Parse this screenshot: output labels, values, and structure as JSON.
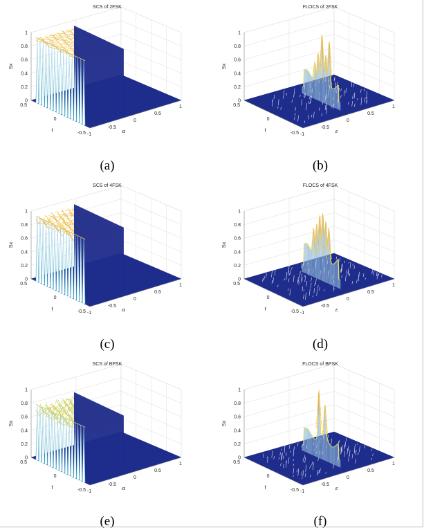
{
  "chart_data": [
    {
      "type": "surface3d",
      "panel": "a",
      "title": "SCS of 2FSK",
      "caption": "(a)",
      "kind": "scs",
      "palette": [
        "#1e2c8c",
        "#1a8fc9",
        "#5ec4a7",
        "#f5e462",
        "#f2c64d",
        "#e8b04a"
      ],
      "zlabel": "Sx",
      "xlabel": "α",
      "ylabel": "f",
      "zticks": [
        "0",
        "0.2",
        "0.4",
        "0.6",
        "0.8",
        "1"
      ],
      "xticks": [
        "-1",
        "-0.5",
        "0",
        "0.5",
        "1"
      ],
      "yticks": [
        "-0.5",
        "0",
        "0.5"
      ],
      "zlim": [
        0,
        1
      ],
      "xlim": [
        -1,
        1
      ],
      "ylim": [
        -0.5,
        0.5
      ],
      "n_spikes": 17,
      "roughness": 0.03
    },
    {
      "type": "surface3d",
      "panel": "b",
      "title": "FLOCS of 2FSK",
      "caption": "(b)",
      "kind": "flocs",
      "palette": [
        "#1e2c8c",
        "#1a8fc9",
        "#5ec4a7",
        "#f5e462",
        "#f2c64d",
        "#e8b04a"
      ],
      "zlabel": "Sx",
      "xlabel": "ε",
      "ylabel": "f",
      "zticks": [
        "0",
        "0.2",
        "0.4",
        "0.6",
        "0.8",
        "1"
      ],
      "xticks": [
        "-1",
        "-0.5",
        "0",
        "0.5",
        "1"
      ],
      "yticks": [
        "-0.5",
        "0",
        "0.5"
      ],
      "zlim": [
        0,
        1
      ],
      "xlim": [
        -1,
        1
      ],
      "ylim": [
        -0.5,
        0.5
      ],
      "peak_positions": [
        0.33,
        0.42,
        0.52,
        0.62,
        0.71
      ],
      "peak_heights": [
        0.55,
        0.7,
        1.0,
        0.72,
        0.95
      ],
      "base_level": 0.38
    },
    {
      "type": "surface3d",
      "panel": "c",
      "title": "SCS of 4FSK",
      "caption": "(c)",
      "kind": "scs",
      "palette": [
        "#1e2c8c",
        "#1a8fc9",
        "#5ec4a7",
        "#f5e462",
        "#f2c64d",
        "#e8b04a"
      ],
      "zlabel": "Sx",
      "xlabel": "α",
      "ylabel": "f",
      "zticks": [
        "0",
        "0.2",
        "0.4",
        "0.6",
        "0.8",
        "1"
      ],
      "xticks": [
        "-1",
        "-0.5",
        "0",
        "0.5",
        "1"
      ],
      "yticks": [
        "-0.5",
        "0",
        "0.5"
      ],
      "zlim": [
        0,
        1
      ],
      "xlim": [
        -1,
        1
      ],
      "ylim": [
        -0.5,
        0.5
      ],
      "n_spikes": 17,
      "roughness": 0.06
    },
    {
      "type": "surface3d",
      "panel": "d",
      "title": "FLOCS of 4FSK",
      "caption": "(d)",
      "kind": "flocs",
      "palette": [
        "#1e2c8c",
        "#1a8fc9",
        "#5ec4a7",
        "#f5e462",
        "#f2c64d",
        "#e8b04a"
      ],
      "zlabel": "Sx",
      "xlabel": "ε",
      "ylabel": "f",
      "zticks": [
        "0",
        "0.2",
        "0.4",
        "0.6",
        "0.8",
        "1"
      ],
      "xticks": [
        "-1",
        "-0.5",
        "0",
        "0.5",
        "1"
      ],
      "yticks": [
        "-0.5",
        "0",
        "0.5"
      ],
      "zlim": [
        0,
        1
      ],
      "xlim": [
        -1,
        1
      ],
      "ylim": [
        -0.5,
        0.5
      ],
      "peak_positions": [
        0.3,
        0.38,
        0.46,
        0.54,
        0.62,
        0.7
      ],
      "peak_heights": [
        0.72,
        0.8,
        0.95,
        1.0,
        0.9,
        0.82
      ],
      "base_level": 0.45
    },
    {
      "type": "surface3d",
      "panel": "e",
      "title": "SCS of BPSK",
      "caption": "(e)",
      "kind": "scs",
      "palette": [
        "#1e2c8c",
        "#1a8fc9",
        "#5ec4a7",
        "#9ccc65",
        "#c9d868",
        "#e8c85a"
      ],
      "zlabel": "Sx",
      "xlabel": "α",
      "ylabel": "f",
      "zticks": [
        "0",
        "0.2",
        "0.4",
        "0.6",
        "0.8",
        "1"
      ],
      "xticks": [
        "-1",
        "-0.5",
        "0",
        "0.5",
        "1"
      ],
      "yticks": [
        "-0.5",
        "0",
        "0.5"
      ],
      "zlim": [
        0,
        1
      ],
      "xlim": [
        -1,
        1
      ],
      "ylim": [
        -0.5,
        0.5
      ],
      "n_spikes": 17,
      "roughness": 0.08,
      "top_level": 0.82
    },
    {
      "type": "surface3d",
      "panel": "f",
      "title": "FLOCS of BPSK",
      "caption": "(f)",
      "kind": "flocs",
      "palette": [
        "#1e2c8c",
        "#1a8fc9",
        "#5ec4a7",
        "#f5e462",
        "#f2c64d",
        "#e8b04a"
      ],
      "zlabel": "Sx",
      "xlabel": "ε",
      "ylabel": "f",
      "zticks": [
        "0",
        "0.2",
        "0.4",
        "0.6",
        "0.8",
        "1"
      ],
      "xticks": [
        "-1",
        "-0.5",
        "0",
        "0.5",
        "1"
      ],
      "yticks": [
        "-0.5",
        "0",
        "0.5"
      ],
      "zlim": [
        0,
        1
      ],
      "xlim": [
        -1,
        1
      ],
      "ylim": [
        -0.5,
        0.5
      ],
      "peak_positions": [
        0.44,
        0.6
      ],
      "peak_heights": [
        1.0,
        0.82
      ],
      "base_level": 0.36
    }
  ]
}
